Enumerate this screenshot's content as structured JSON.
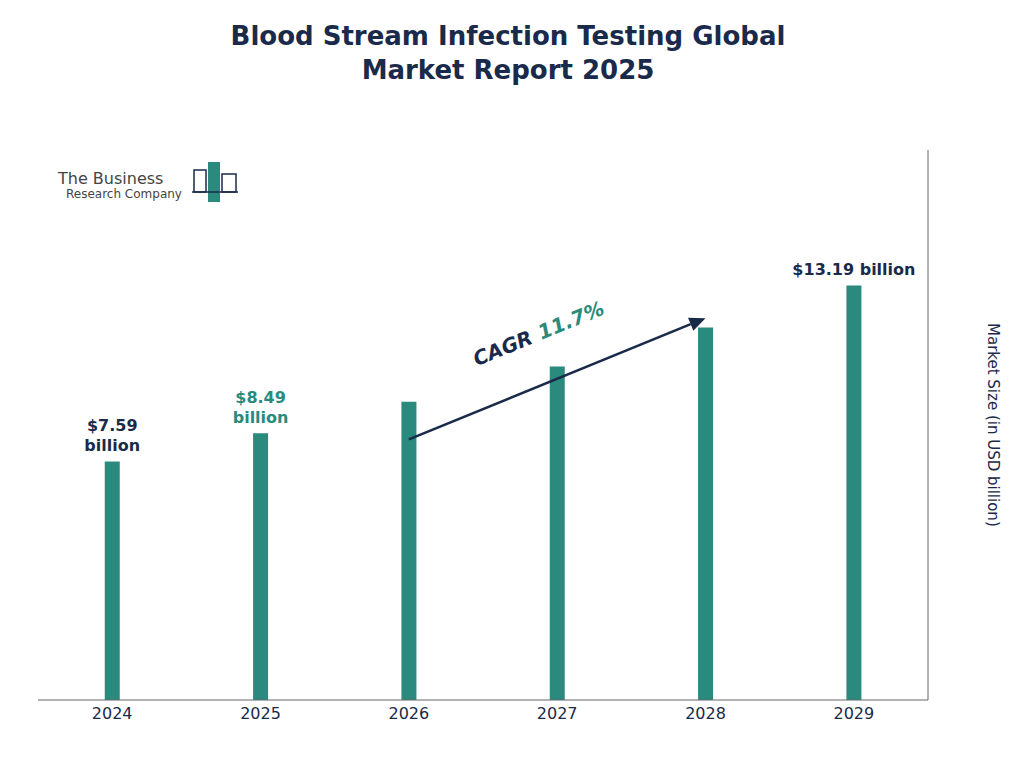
{
  "chart_data": {
    "type": "bar",
    "title": "Blood Stream Infection Testing Global\nMarket Report 2025",
    "categories": [
      "2024",
      "2025",
      "2026",
      "2027",
      "2028",
      "2029"
    ],
    "values": [
      7.59,
      8.49,
      9.49,
      10.61,
      11.85,
      13.19
    ],
    "color": "#2a8a7e",
    "ylabel": "Market Size (in USD billion)",
    "ylim": [
      0,
      17.5
    ],
    "grid": false,
    "tick_labels": "x",
    "text_color": "#1a2a4a",
    "annotations": [
      {
        "category": "2024",
        "text": "$7.59\nbillion",
        "color": "#1a2a4a"
      },
      {
        "category": "2025",
        "text": "$8.49\nbillion",
        "color": "#2a8a7e"
      },
      {
        "category": "2029",
        "text": "$13.19 billion",
        "color": "#1a2a4a"
      }
    ],
    "cagr": {
      "label": "CAGR",
      "value": "11.7%",
      "label_color": "#1a2a4a",
      "value_color": "#2a8a7e",
      "arrow_color": "#1a2a4a",
      "from": "2026",
      "to": "2028"
    },
    "logo": {
      "texts": [
        "The Business",
        "Research Company"
      ],
      "text_color": "#444444",
      "colors": [
        "#1a2a4a",
        "#2a8a7e"
      ]
    }
  }
}
